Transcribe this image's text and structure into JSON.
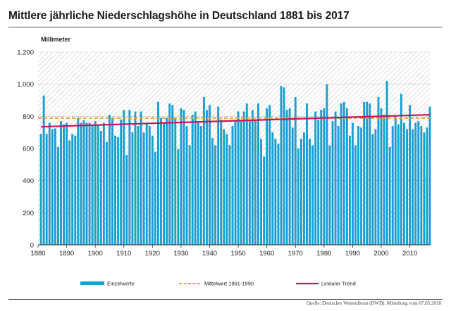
{
  "title": "Mittlere jährliche Niederschlagshöhe in Deutschland 1881 bis 2017",
  "source": "Quelle: Deutscher Wetterdienst (DWD), Mitteilung vom 07.05.2018",
  "colors": {
    "bars": "#1b9fd0",
    "mean": "#e8a33b",
    "trend": "#c4175a",
    "hatch": "#b9b9b9"
  },
  "chart_data": {
    "type": "bar",
    "ylabel": "Millimeter",
    "ylim": [
      0,
      1200
    ],
    "yticks": [
      0,
      200,
      400,
      600,
      800,
      1000,
      1200
    ],
    "ytick_labels": [
      "0",
      "200",
      "400",
      "600",
      "800",
      "1.000",
      "1.200"
    ],
    "xlim": [
      1880,
      2017
    ],
    "xticks": [
      1880,
      1890,
      1900,
      1910,
      1920,
      1930,
      1940,
      1950,
      1960,
      1970,
      1980,
      1990,
      2000,
      2010
    ],
    "ytick_label_hidden": [],
    "grid": "horizontal dotted",
    "legend_position": "bottom",
    "series": [
      {
        "name": "Einzelwerte",
        "type": "bar",
        "x": [
          1881,
          1882,
          1883,
          1884,
          1885,
          1886,
          1887,
          1888,
          1889,
          1890,
          1891,
          1892,
          1893,
          1894,
          1895,
          1896,
          1897,
          1898,
          1899,
          1900,
          1901,
          1902,
          1903,
          1904,
          1905,
          1906,
          1907,
          1908,
          1909,
          1910,
          1911,
          1912,
          1913,
          1914,
          1915,
          1916,
          1917,
          1918,
          1919,
          1920,
          1921,
          1922,
          1923,
          1924,
          1925,
          1926,
          1927,
          1928,
          1929,
          1930,
          1931,
          1932,
          1933,
          1934,
          1935,
          1936,
          1937,
          1938,
          1939,
          1940,
          1941,
          1942,
          1943,
          1944,
          1945,
          1946,
          1947,
          1948,
          1949,
          1950,
          1951,
          1952,
          1953,
          1954,
          1955,
          1956,
          1957,
          1958,
          1959,
          1960,
          1961,
          1962,
          1963,
          1964,
          1965,
          1966,
          1967,
          1968,
          1969,
          1970,
          1971,
          1972,
          1973,
          1974,
          1975,
          1976,
          1977,
          1978,
          1979,
          1980,
          1981,
          1982,
          1983,
          1984,
          1985,
          1986,
          1987,
          1988,
          1989,
          1990,
          1991,
          1992,
          1993,
          1994,
          1995,
          1996,
          1997,
          1998,
          1999,
          2000,
          2001,
          2002,
          2003,
          2004,
          2005,
          2006,
          2007,
          2008,
          2009,
          2010,
          2011,
          2012,
          2013,
          2014,
          2015,
          2016,
          2017
        ],
        "values": [
          690,
          930,
          690,
          760,
          720,
          725,
          610,
          770,
          750,
          760,
          650,
          690,
          680,
          790,
          760,
          775,
          760,
          760,
          740,
          770,
          750,
          710,
          760,
          640,
          810,
          790,
          680,
          670,
          780,
          840,
          560,
          840,
          700,
          830,
          740,
          830,
          700,
          760,
          740,
          680,
          580,
          890,
          790,
          760,
          790,
          880,
          870,
          790,
          595,
          850,
          840,
          740,
          620,
          810,
          830,
          770,
          740,
          920,
          840,
          870,
          665,
          620,
          860,
          780,
          720,
          690,
          620,
          740,
          770,
          830,
          770,
          830,
          880,
          770,
          840,
          780,
          880,
          660,
          550,
          850,
          870,
          700,
          660,
          630,
          990,
          980,
          840,
          850,
          730,
          920,
          600,
          660,
          700,
          880,
          660,
          620,
          830,
          780,
          840,
          850,
          1000,
          620,
          770,
          830,
          740,
          880,
          890,
          850,
          680,
          760,
          620,
          740,
          730,
          890,
          890,
          880,
          690,
          720,
          920,
          850,
          810,
          1020,
          610,
          740,
          800,
          750,
          940,
          760,
          720,
          870,
          720,
          760,
          770,
          740,
          700,
          730,
          860
        ]
      },
      {
        "name": "Mittelwert 1961-1990",
        "type": "line",
        "value": 789
      },
      {
        "name": "Linearer Trend",
        "type": "line",
        "x": [
          1881,
          2017
        ],
        "values": [
          735,
          810
        ]
      }
    ]
  }
}
